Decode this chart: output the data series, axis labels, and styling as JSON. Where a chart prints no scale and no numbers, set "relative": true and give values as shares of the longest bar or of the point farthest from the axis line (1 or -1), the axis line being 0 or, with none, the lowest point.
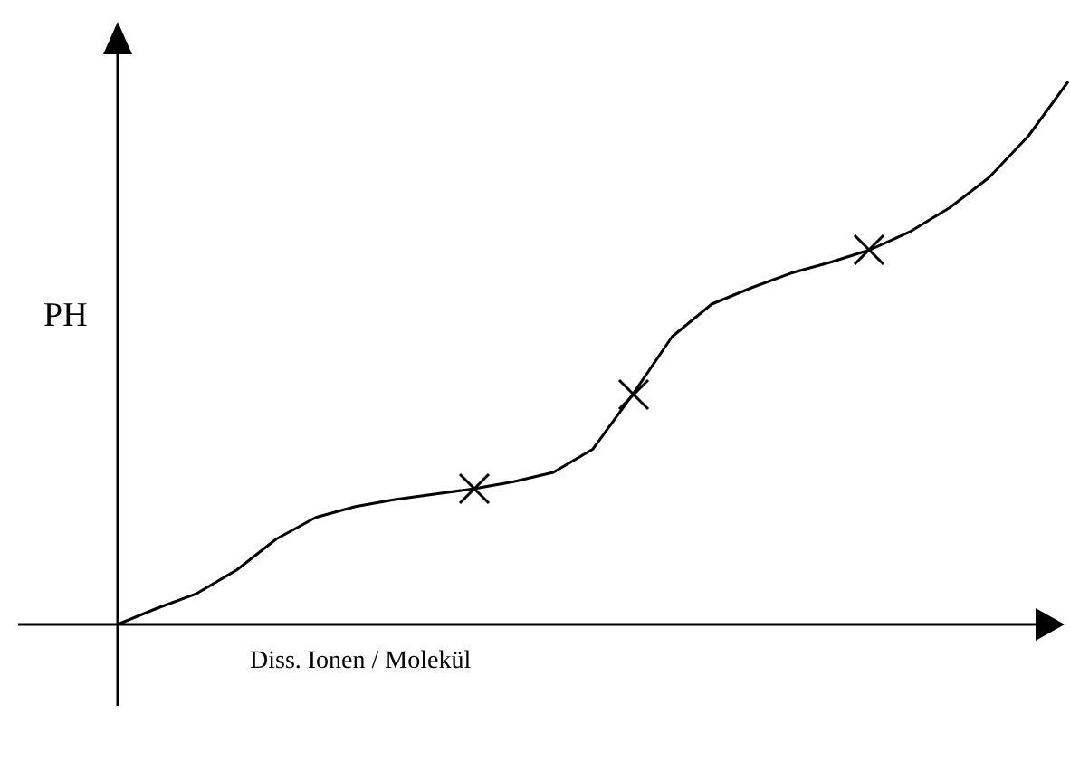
{
  "chart_data": {
    "type": "line",
    "relative": true,
    "xlabel": "Diss. Ionen / Molekül",
    "ylabel": "PH",
    "categories": [
      null,
      null,
      null,
      null,
      null,
      null,
      null,
      null,
      null,
      null,
      null,
      null,
      null,
      null,
      null,
      null,
      null,
      null,
      null,
      null,
      null,
      null,
      null,
      null,
      null
    ],
    "series": [
      {
        "color": "#000000",
        "marker": "none",
        "values": [
          0,
          0.03,
          0.057,
          0.1,
          0.157,
          0.197,
          0.217,
          0.23,
          0.24,
          0.25,
          0.263,
          0.28,
          0.323,
          0.423,
          0.53,
          0.59,
          0.62,
          0.647,
          0.667,
          0.69,
          0.723,
          0.767,
          0.823,
          0.9,
          1
        ]
      }
    ]
  }
}
